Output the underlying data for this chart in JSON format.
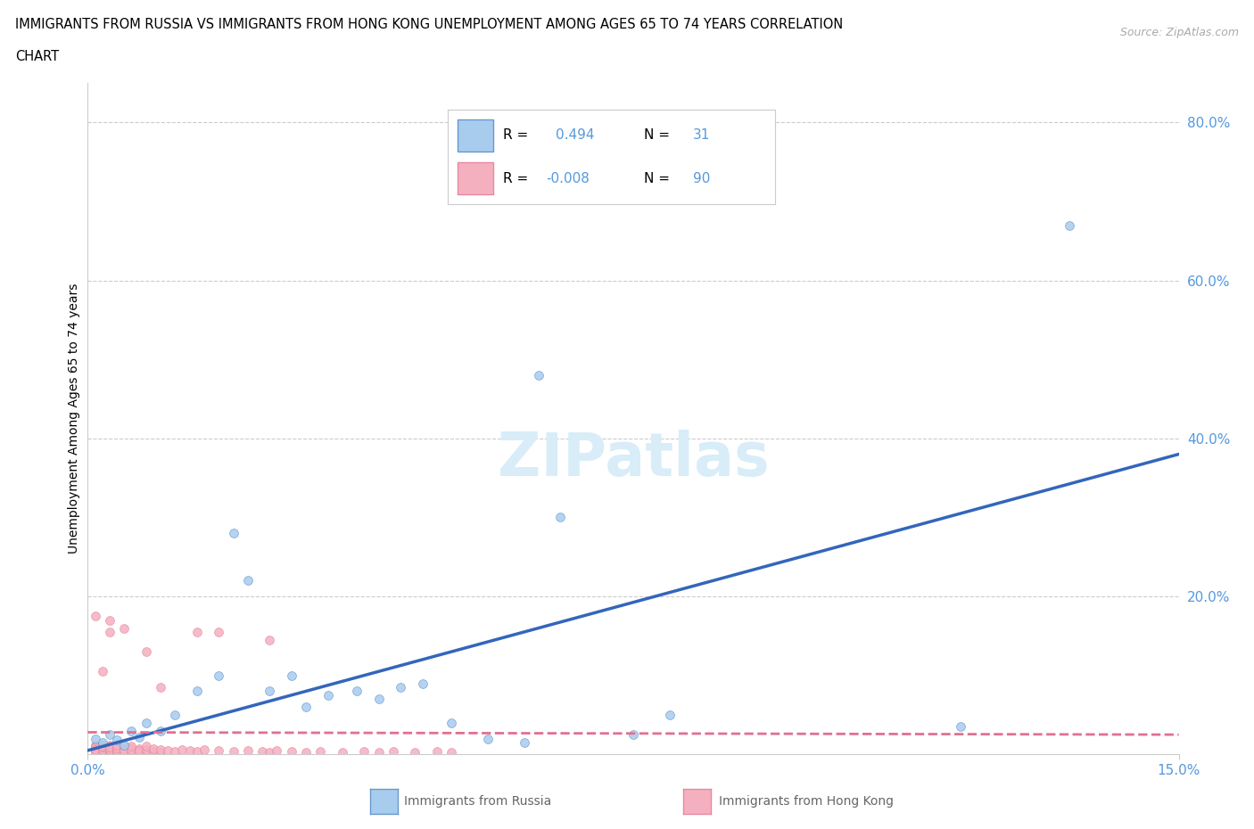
{
  "title_line1": "IMMIGRANTS FROM RUSSIA VS IMMIGRANTS FROM HONG KONG UNEMPLOYMENT AMONG AGES 65 TO 74 YEARS CORRELATION",
  "title_line2": "CHART",
  "source": "Source: ZipAtlas.com",
  "ylabel": "Unemployment Among Ages 65 to 74 years",
  "xlim": [
    0.0,
    0.15
  ],
  "ylim": [
    0.0,
    0.85
  ],
  "yticks_vals": [
    0.2,
    0.4,
    0.6,
    0.8
  ],
  "ytick_labels": [
    "20.0%",
    "40.0%",
    "60.0%",
    "80.0%"
  ],
  "russia_R": 0.494,
  "russia_N": 31,
  "hk_R": -0.008,
  "hk_N": 90,
  "russia_fill": "#a8ccee",
  "russia_edge": "#6699cc",
  "russia_line": "#3366bb",
  "hk_fill": "#f5b0c0",
  "hk_edge": "#e888a0",
  "hk_line": "#e07090",
  "watermark_color": "#d8edf8",
  "bg_color": "#ffffff",
  "grid_color": "#cccccc",
  "tick_color": "#5599dd",
  "russia_x": [
    0.001,
    0.002,
    0.003,
    0.004,
    0.005,
    0.006,
    0.007,
    0.008,
    0.01,
    0.012,
    0.015,
    0.018,
    0.02,
    0.022,
    0.025,
    0.028,
    0.03,
    0.033,
    0.037,
    0.04,
    0.043,
    0.046,
    0.05,
    0.055,
    0.06,
    0.062,
    0.065,
    0.075,
    0.08,
    0.12,
    0.135
  ],
  "russia_y": [
    0.02,
    0.015,
    0.025,
    0.018,
    0.012,
    0.03,
    0.022,
    0.04,
    0.03,
    0.05,
    0.08,
    0.1,
    0.28,
    0.22,
    0.08,
    0.1,
    0.06,
    0.075,
    0.08,
    0.07,
    0.085,
    0.09,
    0.04,
    0.02,
    0.015,
    0.48,
    0.3,
    0.025,
    0.05,
    0.035,
    0.67
  ],
  "hk_x": [
    0.001,
    0.001,
    0.001,
    0.001,
    0.001,
    0.001,
    0.001,
    0.001,
    0.001,
    0.001,
    0.002,
    0.002,
    0.002,
    0.002,
    0.002,
    0.002,
    0.002,
    0.002,
    0.002,
    0.002,
    0.003,
    0.003,
    0.003,
    0.003,
    0.003,
    0.003,
    0.003,
    0.003,
    0.003,
    0.003,
    0.004,
    0.004,
    0.004,
    0.004,
    0.004,
    0.004,
    0.004,
    0.004,
    0.005,
    0.005,
    0.005,
    0.005,
    0.005,
    0.005,
    0.006,
    0.006,
    0.006,
    0.006,
    0.007,
    0.007,
    0.007,
    0.008,
    0.008,
    0.008,
    0.009,
    0.009,
    0.01,
    0.01,
    0.011,
    0.012,
    0.013,
    0.014,
    0.015,
    0.016,
    0.018,
    0.02,
    0.022,
    0.024,
    0.025,
    0.026,
    0.028,
    0.03,
    0.032,
    0.035,
    0.038,
    0.04,
    0.042,
    0.045,
    0.048,
    0.05,
    0.003,
    0.008,
    0.018,
    0.025,
    0.015,
    0.01,
    0.005,
    0.003,
    0.002,
    0.001
  ],
  "hk_y": [
    0.005,
    0.008,
    0.012,
    0.006,
    0.01,
    0.004,
    0.007,
    0.009,
    0.003,
    0.006,
    0.008,
    0.012,
    0.005,
    0.01,
    0.004,
    0.007,
    0.003,
    0.006,
    0.009,
    0.011,
    0.006,
    0.01,
    0.004,
    0.007,
    0.003,
    0.005,
    0.008,
    0.012,
    0.006,
    0.009,
    0.004,
    0.007,
    0.003,
    0.006,
    0.01,
    0.005,
    0.008,
    0.012,
    0.004,
    0.007,
    0.003,
    0.006,
    0.01,
    0.005,
    0.008,
    0.003,
    0.006,
    0.01,
    0.004,
    0.007,
    0.005,
    0.003,
    0.006,
    0.01,
    0.004,
    0.007,
    0.003,
    0.006,
    0.005,
    0.004,
    0.006,
    0.005,
    0.004,
    0.006,
    0.005,
    0.004,
    0.005,
    0.004,
    0.003,
    0.005,
    0.004,
    0.003,
    0.004,
    0.003,
    0.004,
    0.003,
    0.004,
    0.003,
    0.004,
    0.003,
    0.155,
    0.13,
    0.155,
    0.145,
    0.155,
    0.085,
    0.16,
    0.17,
    0.105,
    0.175
  ],
  "russia_line_x0": 0.0,
  "russia_line_y0": 0.005,
  "russia_line_x1": 0.15,
  "russia_line_y1": 0.38,
  "hk_line_x0": 0.0,
  "hk_line_y0": 0.028,
  "hk_line_x1": 0.15,
  "hk_line_y1": 0.025
}
